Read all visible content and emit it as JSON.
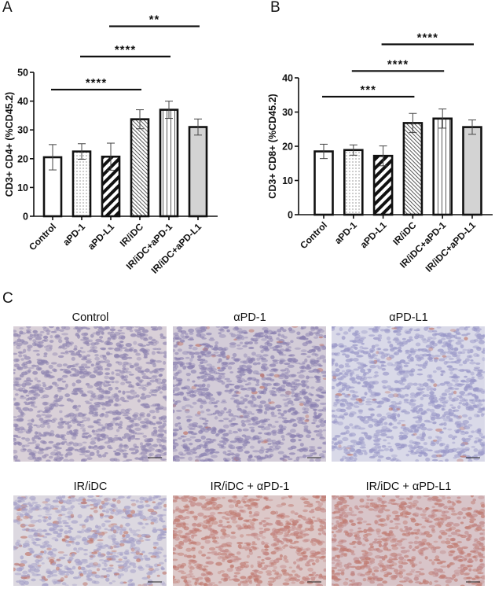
{
  "panels": {
    "a_label": "A",
    "b_label": "B",
    "c_label": "C"
  },
  "chart_data": [
    {
      "type": "bar",
      "panel": "A",
      "ylabel": "CD3+ CD4+ (%CD45.2)",
      "xlabel": "",
      "ylim": [
        0,
        50
      ],
      "yticks": [
        "0",
        "10",
        "20",
        "30",
        "40",
        "50"
      ],
      "categories": [
        "Control",
        "aPD-1",
        "aPD-L1",
        "IR/iDC",
        "IR/iDC+aPD-1",
        "IR/iDC+aPD-L1"
      ],
      "values": [
        20.5,
        22.5,
        20.7,
        33.7,
        37.0,
        31.0
      ],
      "error": [
        4.4,
        2.7,
        4.7,
        3.3,
        3.0,
        2.8
      ],
      "patterns": [
        "white",
        "dots",
        "wide-diagonal",
        "fine-diagonal",
        "vertical-lines",
        "gray"
      ],
      "significance": [
        {
          "from": "Control",
          "to": "IR/iDC",
          "label": "****",
          "y": 44
        },
        {
          "from": "aPD-1",
          "to": "IR/iDC+aPD-1",
          "label": "****",
          "y": 55.5
        },
        {
          "from": "aPD-L1",
          "to": "IR/iDC+aPD-L1",
          "label": "**",
          "y": 66
        }
      ],
      "grid": false,
      "legend": "none"
    },
    {
      "type": "bar",
      "panel": "B",
      "ylabel": "CD3+ CD8+ (%CD45.2)",
      "xlabel": "",
      "ylim": [
        0,
        40
      ],
      "yticks": [
        "0",
        "10",
        "20",
        "30",
        "40"
      ],
      "categories": [
        "Control",
        "aPD-1",
        "aPD-L1",
        "IR/iDC",
        "IR/iDC+aPD-1",
        "IR/iDC+aPD-L1"
      ],
      "values": [
        18.5,
        18.9,
        17.2,
        26.8,
        28.1,
        25.6
      ],
      "error": [
        2.1,
        1.5,
        2.9,
        2.8,
        2.8,
        2.1
      ],
      "patterns": [
        "white",
        "dots",
        "wide-diagonal",
        "fine-diagonal",
        "vertical-lines",
        "gray"
      ],
      "significance": [
        {
          "from": "Control",
          "to": "IR/iDC",
          "label": "***",
          "y": 34.5
        },
        {
          "from": "aPD-1",
          "to": "IR/iDC+aPD-1",
          "label": "****",
          "y": 42
        },
        {
          "from": "aPD-L1",
          "to": "IR/iDC+aPD-L1",
          "label": "****",
          "y": 49.8
        }
      ],
      "grid": false,
      "legend": "none"
    }
  ],
  "micrographs": [
    {
      "title": "Control",
      "stain": 0.0,
      "colors": {
        "bg": "#d9d0d8",
        "cell": "#8e84b0"
      }
    },
    {
      "title": "αPD-1",
      "stain": 0.05,
      "colors": {
        "bg": "#d3ccd8",
        "cell": "#8a80b0"
      }
    },
    {
      "title": "αPD-L1",
      "stain": 0.05,
      "colors": {
        "bg": "#d9d9e8",
        "cell": "#9a98c8"
      }
    },
    {
      "title": "IR/iDC",
      "stain": 0.3,
      "colors": {
        "bg": "#dcd8e0",
        "cell": "#a5a0c8"
      }
    },
    {
      "title": "IR/iDC + αPD-1",
      "stain": 0.7,
      "colors": {
        "bg": "#dcc8c8",
        "cell": "#c48a88"
      }
    },
    {
      "title": "IR/iDC + αPD-L1",
      "stain": 0.75,
      "colors": {
        "bg": "#d8c4c8",
        "cell": "#c08888"
      }
    }
  ],
  "colors": {
    "stain_brown": "#c07a70",
    "bar_gray": "#d3d3d3",
    "ink": "#111111"
  }
}
